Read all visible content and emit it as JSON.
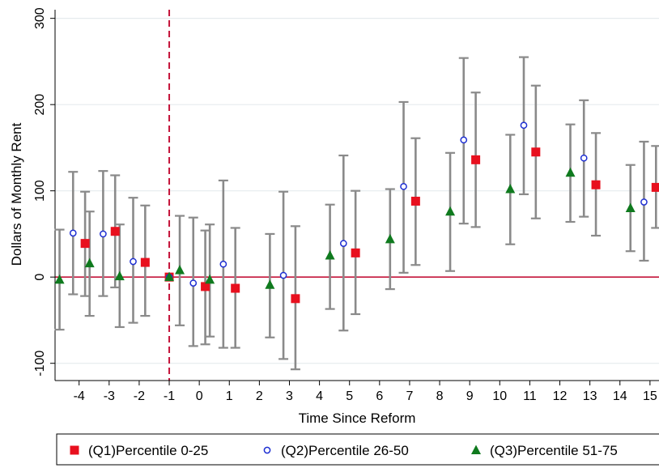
{
  "chart_data": {
    "type": "scatter",
    "xlabel": "Time Since Reform",
    "ylabel": "Dollars of Monthly Rent",
    "x_ticks": [
      -4,
      -3,
      -2,
      -1,
      0,
      1,
      2,
      3,
      4,
      5,
      6,
      7,
      8,
      9,
      10,
      11,
      12,
      13,
      14,
      15
    ],
    "y_ticks": [
      -100,
      0,
      100,
      200,
      300
    ],
    "xlim": [
      -4.8,
      15.3
    ],
    "ylim": [
      -120,
      310
    ],
    "reference_lines": {
      "vertical_x": -1,
      "horizontal_y": 0
    },
    "grid": "horizontal",
    "legend_position": "bottom",
    "series": [
      {
        "name": "(Q1)Percentile 0-25",
        "marker": "square",
        "color": "#e8101e",
        "x_offset": 0.2,
        "x": [
          -4,
          -3,
          -2,
          -1,
          0,
          1,
          3,
          5,
          7,
          9,
          11,
          13,
          15
        ],
        "y": [
          39,
          53,
          17,
          0,
          -11,
          -13,
          -25,
          28,
          88,
          136,
          145,
          107,
          104
        ],
        "ci_low": [
          -22,
          -12,
          -45,
          0,
          -78,
          -82,
          -107,
          -43,
          14,
          58,
          68,
          48,
          57
        ],
        "ci_high": [
          99,
          118,
          83,
          0,
          54,
          57,
          59,
          100,
          161,
          214,
          222,
          167,
          152
        ]
      },
      {
        "name": "(Q2)Percentile 26-50",
        "marker": "hollow-circle",
        "color": "#1e2fd2",
        "x_offset": -0.2,
        "x": [
          -4,
          -3,
          -2,
          -1,
          0,
          1,
          3,
          5,
          7,
          9,
          11,
          13,
          15
        ],
        "y": [
          51,
          50,
          18,
          0,
          -7,
          15,
          2,
          39,
          105,
          159,
          176,
          138,
          87
        ],
        "ci_low": [
          -20,
          -22,
          -53,
          0,
          -80,
          -82,
          -95,
          -62,
          5,
          62,
          96,
          70,
          19
        ],
        "ci_high": [
          122,
          123,
          92,
          0,
          69,
          112,
          99,
          141,
          203,
          254,
          255,
          205,
          157
        ]
      },
      {
        "name": "(Q3)Percentile 51-75",
        "marker": "triangle",
        "color": "#0f7a1e",
        "x_offset": -0.65,
        "x": [
          -4,
          -3,
          -2,
          -1,
          0,
          1,
          3,
          5,
          7,
          9,
          11,
          13,
          15
        ],
        "y": [
          -3,
          16,
          1,
          0,
          8,
          -3,
          -9,
          25,
          44,
          76,
          102,
          121,
          80
        ],
        "ci_low": [
          -61,
          -45,
          -58,
          0,
          -56,
          -69,
          -70,
          -37,
          -14,
          7,
          38,
          64,
          30
        ],
        "ci_high": [
          55,
          76,
          61,
          0,
          71,
          61,
          50,
          84,
          102,
          144,
          165,
          177,
          130
        ]
      }
    ]
  }
}
